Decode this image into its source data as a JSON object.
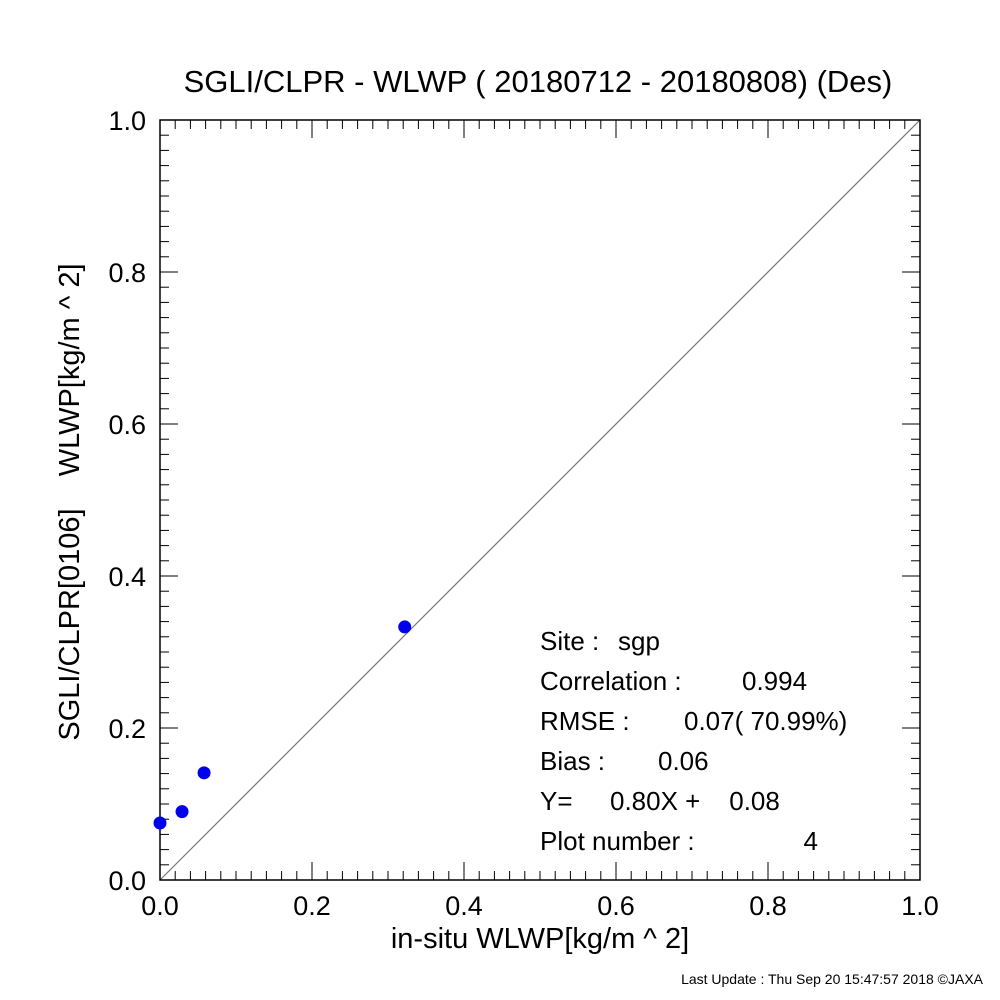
{
  "chart_data": {
    "type": "scatter",
    "title": "SGLI/CLPR - WLWP ( 20180712 - 20180808) (Des)",
    "xlabel": "in-situ WLWP[kg/m ^ 2]",
    "ylabel": "SGLI/CLPR[0106]    WLWP[kg/m ^ 2]",
    "xlim": [
      0.0,
      1.0
    ],
    "ylim": [
      0.0,
      1.0
    ],
    "x_ticks": [
      "0.0",
      "0.2",
      "0.4",
      "0.6",
      "0.8",
      "1.0"
    ],
    "y_ticks": [
      "0.0",
      "0.2",
      "0.4",
      "0.6",
      "0.8",
      "1.0"
    ],
    "grid": false,
    "reference_line": "y = x",
    "marker_color": "#0000ee",
    "points": [
      {
        "x": 0.0,
        "y": 0.075
      },
      {
        "x": 0.029,
        "y": 0.09
      },
      {
        "x": 0.058,
        "y": 0.141
      },
      {
        "x": 0.322,
        "y": 0.333
      }
    ],
    "annotations": [
      {
        "label": "Site :",
        "value": "sgp"
      },
      {
        "label": "Correlation :",
        "value": "0.994"
      },
      {
        "label": "RMSE :",
        "value": "0.07( 70.99%)"
      },
      {
        "label": "Bias :",
        "value": "0.06"
      },
      {
        "label": "Y=",
        "value": "0.80X +    0.08"
      },
      {
        "label": "Plot number :",
        "value": "4"
      }
    ]
  },
  "footer": "Last Update : Thu Sep 20 15:47:57 2018  ©JAXA"
}
